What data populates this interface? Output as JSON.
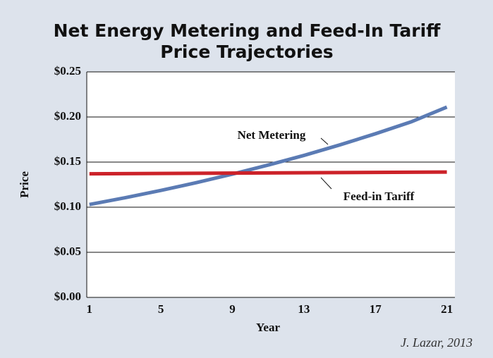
{
  "chart_data": {
    "type": "line",
    "title": [
      "Net Energy Metering and Feed-In Tariff",
      "Price Trajectories"
    ],
    "x_label": "Year",
    "y_label": "Price",
    "x": [
      1,
      3,
      5,
      7,
      9,
      11,
      13,
      15,
      17,
      19,
      21
    ],
    "series": [
      {
        "name": "Net Metering",
        "color": "#5b7bb4",
        "values": [
          0.103,
          0.1105,
          0.1186,
          0.1273,
          0.1367,
          0.1467,
          0.1574,
          0.169,
          0.1814,
          0.1946,
          0.211
        ]
      },
      {
        "name": "Feed-in Tariff",
        "color": "#cc2229",
        "values": [
          0.137,
          0.1372,
          0.1374,
          0.1376,
          0.1378,
          0.138,
          0.1382,
          0.1384,
          0.1386,
          0.1388,
          0.139
        ]
      }
    ],
    "xlim": [
      0.85,
      21.45
    ],
    "xticks": [
      1,
      5,
      9,
      13,
      17,
      21
    ],
    "ylim": [
      0,
      0.25
    ],
    "yticks": [
      {
        "value": 0,
        "label": "$0.00"
      },
      {
        "value": 0.05,
        "label": "$0.05"
      },
      {
        "value": 0.1,
        "label": "$0.10"
      },
      {
        "value": 0.15,
        "label": "$0.15"
      },
      {
        "value": 0.2,
        "label": "$0.20"
      },
      {
        "value": 0.25,
        "label": "$0.25"
      }
    ],
    "grid": true,
    "source": "J. Lazar, 2013"
  }
}
